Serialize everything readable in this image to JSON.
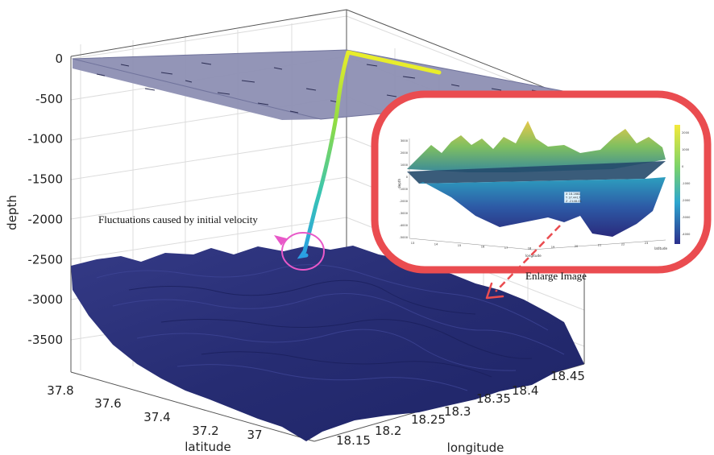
{
  "chart_data": {
    "type": "surface3d",
    "title": "",
    "axes": {
      "z": {
        "label": "depth",
        "ticks": [
          "0",
          "-500",
          "-1000",
          "-1500",
          "-2000",
          "-2500",
          "-3000",
          "-3500"
        ],
        "range": [
          -3900,
          0
        ]
      },
      "x": {
        "label": "latitude",
        "ticks": [
          "37.8",
          "37.6",
          "37.4",
          "37.2",
          "37"
        ]
      },
      "y": {
        "label": "longitude",
        "ticks": [
          "18.15",
          "18.2",
          "18.25",
          "18.3",
          "18.35",
          "18.4",
          "18.45"
        ]
      }
    },
    "grid": true,
    "surfaces": [
      {
        "name": "sea surface",
        "depth": 0,
        "color": "#8d8fb3"
      },
      {
        "name": "seabed",
        "depth_range": [
          -3900,
          -2500
        ],
        "color": "#2a2f78"
      }
    ],
    "trajectory": {
      "colors": [
        "#f5ee2a",
        "#9fdc3a",
        "#3fc5a8",
        "#2aa6e0"
      ],
      "start_depth": 0,
      "end_depth": -2450
    },
    "annotations": [
      {
        "text": "Fluctuations caused by initial velocity"
      },
      {
        "text": "Enlarge Image"
      }
    ],
    "inset": {
      "xlabel": "longitude",
      "ylabel": "depth",
      "zlabel": "latitude",
      "ticks_y": [
        "3000",
        "2000",
        "1000",
        "0",
        "-1000",
        "-2000",
        "-3000",
        "-4000",
        "-5000"
      ],
      "ticks_x": [
        "13",
        "14",
        "15",
        "16",
        "17",
        "18",
        "19",
        "20",
        "21",
        "22",
        "23"
      ],
      "datatip": [
        "X 18.2882",
        "Y 37.4417",
        "Z -2148.01"
      ],
      "colorbar_ticks": [
        "2000",
        "1000",
        "0",
        "-1000",
        "-2000",
        "-3000",
        "-4000"
      ]
    }
  }
}
